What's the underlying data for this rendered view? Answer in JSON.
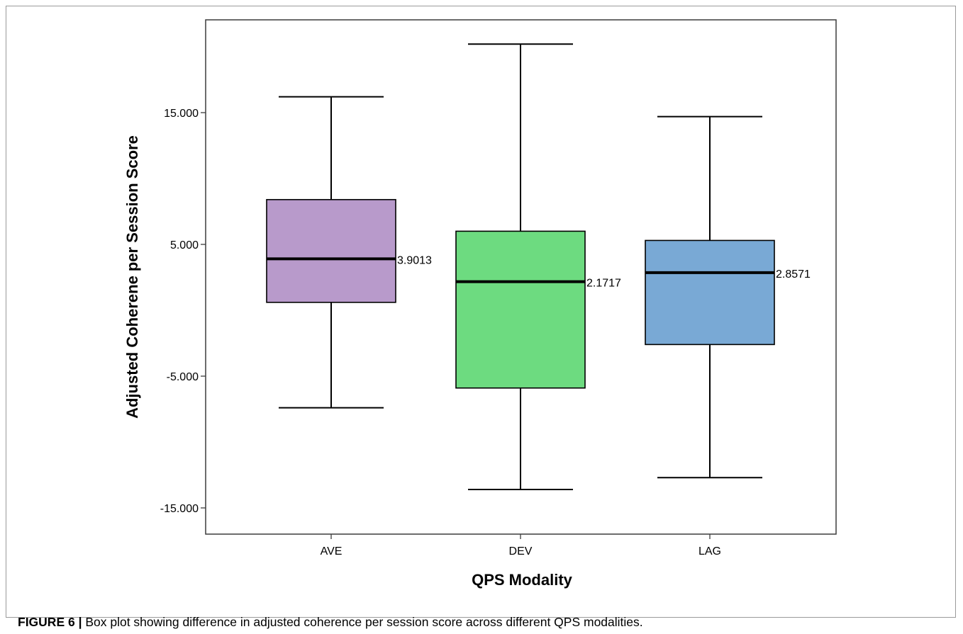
{
  "caption": {
    "label": "FIGURE 6 |",
    "text": " Box plot showing difference in adjusted coherence per session score across different QPS modalities."
  },
  "chart_data": {
    "type": "box",
    "xlabel": "QPS Modality",
    "ylabel": "Adjusted Coherene per Session Score",
    "categories": [
      "AVE",
      "DEV",
      "LAG"
    ],
    "yticks": [
      15.0,
      5.0,
      -5.0,
      -15.0
    ],
    "ytick_labels": [
      "15.000",
      "5.000",
      "-5.000",
      "-15.000"
    ],
    "ylim": [
      -17,
      22
    ],
    "grid": false,
    "series": [
      {
        "category": "AVE",
        "whisker_low": -7.4,
        "q1": 0.6,
        "median": 3.9013,
        "q3": 8.4,
        "whisker_high": 16.2,
        "median_label": "3.9013",
        "color": "#b89acb"
      },
      {
        "category": "DEV",
        "whisker_low": -13.6,
        "q1": -5.9,
        "median": 2.1717,
        "q3": 6.0,
        "whisker_high": 20.2,
        "median_label": "2.1717",
        "color": "#6ddb80"
      },
      {
        "category": "LAG",
        "whisker_low": -12.7,
        "q1": -2.6,
        "median": 2.8571,
        "q3": 5.3,
        "whisker_high": 14.7,
        "median_label": "2.8571",
        "color": "#79a9d5"
      }
    ]
  }
}
